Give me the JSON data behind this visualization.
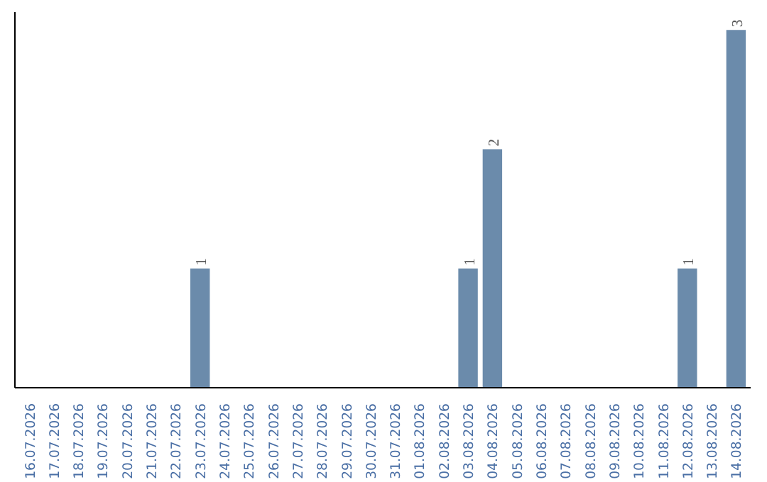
{
  "chart_data": {
    "type": "bar",
    "categories": [
      "16.07.2026",
      "17.07.2026",
      "18.07.2026",
      "19.07.2026",
      "20.07.2026",
      "21.07.2026",
      "22.07.2026",
      "23.07.2026",
      "24.07.2026",
      "25.07.2026",
      "26.07.2026",
      "27.07.2026",
      "28.07.2026",
      "29.07.2026",
      "30.07.2026",
      "31.07.2026",
      "01.08.2026",
      "02.08.2026",
      "03.08.2026",
      "04.08.2026",
      "05.08.2026",
      "06.08.2026",
      "07.08.2026",
      "08.08.2026",
      "09.08.2026",
      "10.08.2026",
      "11.08.2026",
      "12.08.2026",
      "13.08.2026",
      "14.08.2026"
    ],
    "values": [
      0,
      0,
      0,
      0,
      0,
      0,
      0,
      1,
      0,
      0,
      0,
      0,
      0,
      0,
      0,
      0,
      0,
      0,
      1,
      2,
      0,
      0,
      0,
      0,
      0,
      0,
      0,
      1,
      0,
      3
    ],
    "value_labels": [
      null,
      null,
      null,
      null,
      null,
      null,
      null,
      "1",
      null,
      null,
      null,
      null,
      null,
      null,
      null,
      null,
      null,
      null,
      "1",
      "2",
      null,
      null,
      null,
      null,
      null,
      null,
      null,
      "1",
      null,
      "3"
    ],
    "color": "#6b8bab",
    "grid": false
  }
}
